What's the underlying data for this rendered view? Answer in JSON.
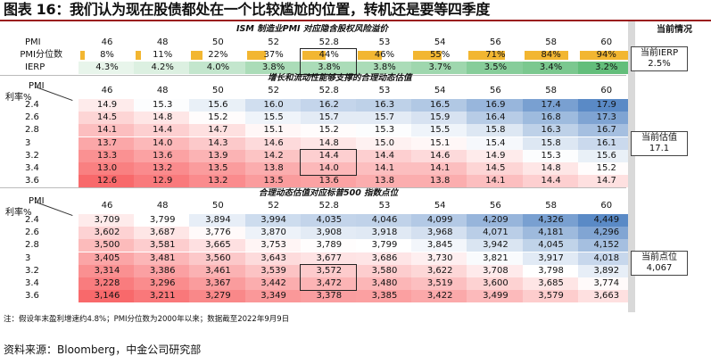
{
  "title": "图表 16：我们认为现在股债都处在一个比较尴尬的位置，转机还是要等四季度",
  "side": {
    "header": "当前情况",
    "box1": {
      "label": "当前IERP",
      "value": "2.5%"
    },
    "box2": {
      "label": "当前估值",
      "value": "17.1"
    },
    "box3": {
      "label": "当前点位",
      "value": "4,067"
    }
  },
  "section1": {
    "title": "ISM 制造业PMI 对应隐含股权风险溢价",
    "pmi_label": "PMI",
    "pct_label": "PMI分位数",
    "ierp_label": "IERP",
    "pmi": [
      "46",
      "48",
      "50",
      "52",
      "52.8",
      "53",
      "54",
      "56",
      "58",
      "60"
    ],
    "pct": [
      "8%",
      "11%",
      "22%",
      "37%",
      "44%",
      "46%",
      "55%",
      "71%",
      "84%",
      "94%"
    ],
    "pct_values": [
      0.08,
      0.11,
      0.22,
      0.37,
      0.44,
      0.46,
      0.55,
      0.71,
      0.84,
      0.94
    ],
    "ierp": [
      "4.3%",
      "4.2%",
      "4.0%",
      "3.8%",
      "3.8%",
      "3.8%",
      "3.7%",
      "3.5%",
      "3.4%",
      "3.2%"
    ]
  },
  "section2": {
    "title": "增长和流动性能够支撑的合理动态估值",
    "pmi_label": "PMI",
    "rate_label": "利率%",
    "cols": [
      "46",
      "48",
      "50",
      "52",
      "52.8",
      "53",
      "54",
      "56",
      "58",
      "60"
    ],
    "rows": [
      {
        "rate": "2.4",
        "cells": [
          "14.9",
          "15.3",
          "15.6",
          "16.0",
          "16.2",
          "16.3",
          "16.5",
          "16.9",
          "17.4",
          "17.9"
        ]
      },
      {
        "rate": "2.6",
        "cells": [
          "14.5",
          "14.8",
          "15.2",
          "15.5",
          "15.7",
          "15.7",
          "15.9",
          "16.4",
          "16.8",
          "17.3"
        ]
      },
      {
        "rate": "2.8",
        "cells": [
          "14.1",
          "14.4",
          "14.7",
          "15.1",
          "15.2",
          "15.3",
          "15.5",
          "15.8",
          "16.3",
          "16.7"
        ]
      },
      {
        "rate": "3",
        "cells": [
          "13.7",
          "14.0",
          "14.3",
          "14.6",
          "14.8",
          "15.0",
          "15.1",
          "15.4",
          "15.8",
          "16.1"
        ]
      },
      {
        "rate": "3.2",
        "cells": [
          "13.3",
          "13.6",
          "13.9",
          "14.2",
          "14.4",
          "14.4",
          "14.6",
          "14.9",
          "15.3",
          "15.6"
        ]
      },
      {
        "rate": "3.4",
        "cells": [
          "13.0",
          "13.2",
          "13.5",
          "13.8",
          "14.0",
          "14.1",
          "14.1",
          "14.5",
          "14.8",
          "15.2"
        ]
      },
      {
        "rate": "3.6",
        "cells": [
          "12.6",
          "12.9",
          "13.2",
          "13.5",
          "13.6",
          "13.8",
          "13.8",
          "14.1",
          "14.4",
          "14.7"
        ]
      }
    ]
  },
  "section3": {
    "title": "合理动态估值对应标普500 指数点位",
    "pmi_label": "PMI",
    "rate_label": "利率%",
    "cols": [
      "46",
      "48",
      "50",
      "52",
      "52.8",
      "53",
      "54",
      "56",
      "58",
      "60"
    ],
    "rows": [
      {
        "rate": "2.4",
        "cells": [
          "3,709",
          "3,799",
          "3,894",
          "3,994",
          "4,035",
          "4,046",
          "4,099",
          "4,209",
          "4,326",
          "4,449"
        ]
      },
      {
        "rate": "2.6",
        "cells": [
          "3,602",
          "3,687",
          "3,776",
          "3,870",
          "3,908",
          "3,918",
          "3,968",
          "4,071",
          "4,181",
          "4,296"
        ]
      },
      {
        "rate": "2.8",
        "cells": [
          "3,500",
          "3,581",
          "3,665",
          "3,753",
          "3,789",
          "3,799",
          "3,845",
          "3,942",
          "4,045",
          "4,152"
        ]
      },
      {
        "rate": "3",
        "cells": [
          "3,405",
          "3,481",
          "3,560",
          "3,643",
          "3,677",
          "3,686",
          "3,730",
          "3,821",
          "3,917",
          "4,018"
        ]
      },
      {
        "rate": "3.2",
        "cells": [
          "3,314",
          "3,386",
          "3,461",
          "3,539",
          "3,572",
          "3,580",
          "3,622",
          "3,708",
          "3,798",
          "3,892"
        ]
      },
      {
        "rate": "3.4",
        "cells": [
          "3,228",
          "3,296",
          "3,367",
          "3,442",
          "3,472",
          "3,480",
          "3,519",
          "3,600",
          "3,685",
          "3,774"
        ]
      },
      {
        "rate": "3.6",
        "cells": [
          "3,146",
          "3,211",
          "3,279",
          "3,349",
          "3,378",
          "3,385",
          "3,422",
          "3,499",
          "3,579",
          "3,663"
        ]
      }
    ]
  },
  "colors": {
    "title_bar": "#9a1b1b",
    "pct_bar": "#f2b631",
    "ierp_green": "#63be7b",
    "heat_low": "#f8696b",
    "heat_mid": "#ffffff",
    "heat_high": "#5a8ac6"
  },
  "note": "注：假设年末盈利增速约4.8%；PMI分位数为2000年以来；数据截至2022年9月9日",
  "source": "资料来源：Bloomberg，中金公司研究部"
}
